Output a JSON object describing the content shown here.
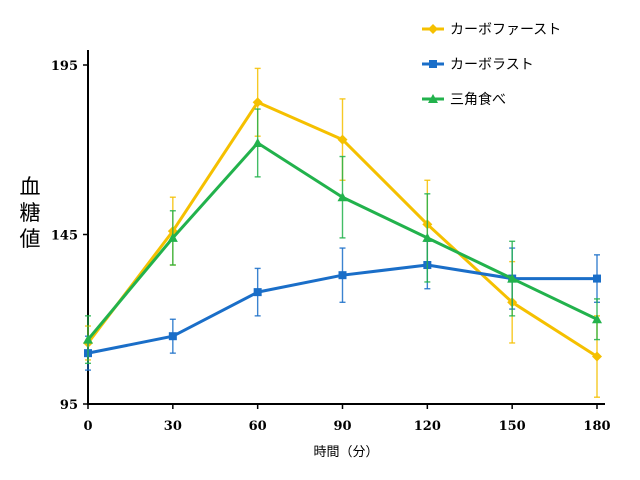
{
  "chart_data": {
    "type": "line",
    "title": "",
    "xlabel": "時間（分）",
    "ylabel": "血糖値",
    "x": [
      0,
      30,
      60,
      90,
      120,
      150,
      180
    ],
    "xticks": [
      0,
      30,
      60,
      90,
      120,
      150,
      180
    ],
    "yticks": [
      95,
      145,
      195
    ],
    "xlim": [
      0,
      180
    ],
    "ylim": [
      95,
      195
    ],
    "grid": false,
    "legend_position": "top-right",
    "series": [
      {
        "name": "カーボファースト",
        "color": "#f5c000",
        "marker": "diamond",
        "values": [
          113,
          146,
          184,
          173,
          148,
          125,
          109
        ],
        "errors": [
          5,
          10,
          10,
          12,
          13,
          12,
          12
        ]
      },
      {
        "name": "カーボラスト",
        "color": "#1a6ec8",
        "marker": "square",
        "values": [
          110,
          115,
          128,
          133,
          136,
          132,
          132
        ],
        "errors": [
          5,
          5,
          7,
          8,
          7,
          9,
          7
        ]
      },
      {
        "name": "三角食べ",
        "color": "#22b24c",
        "marker": "triangle",
        "values": [
          114,
          144,
          172,
          156,
          144,
          132,
          120
        ],
        "errors": [
          7,
          8,
          10,
          12,
          13,
          11,
          6
        ]
      }
    ]
  }
}
